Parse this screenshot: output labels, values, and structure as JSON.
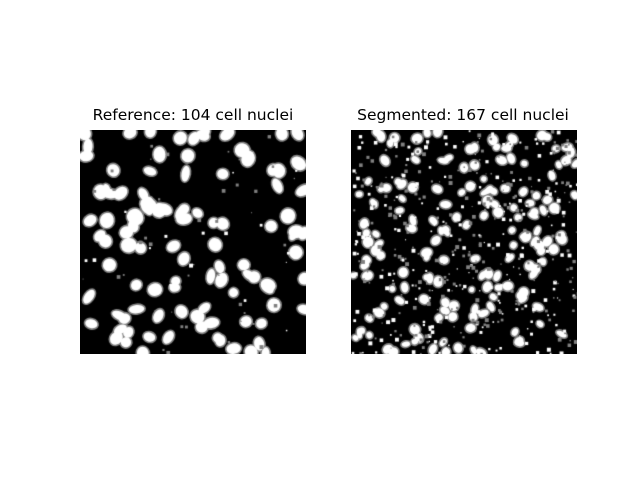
{
  "figure": {
    "panels": [
      {
        "title": "Reference: 104 cell nuclei",
        "count": 104
      },
      {
        "title": "Segmented: 167 cell nuclei",
        "count": 167
      }
    ],
    "colors": {
      "background": "#000000",
      "nucleus_fill": "#ffffff",
      "nucleus_outline": "#808080"
    }
  }
}
